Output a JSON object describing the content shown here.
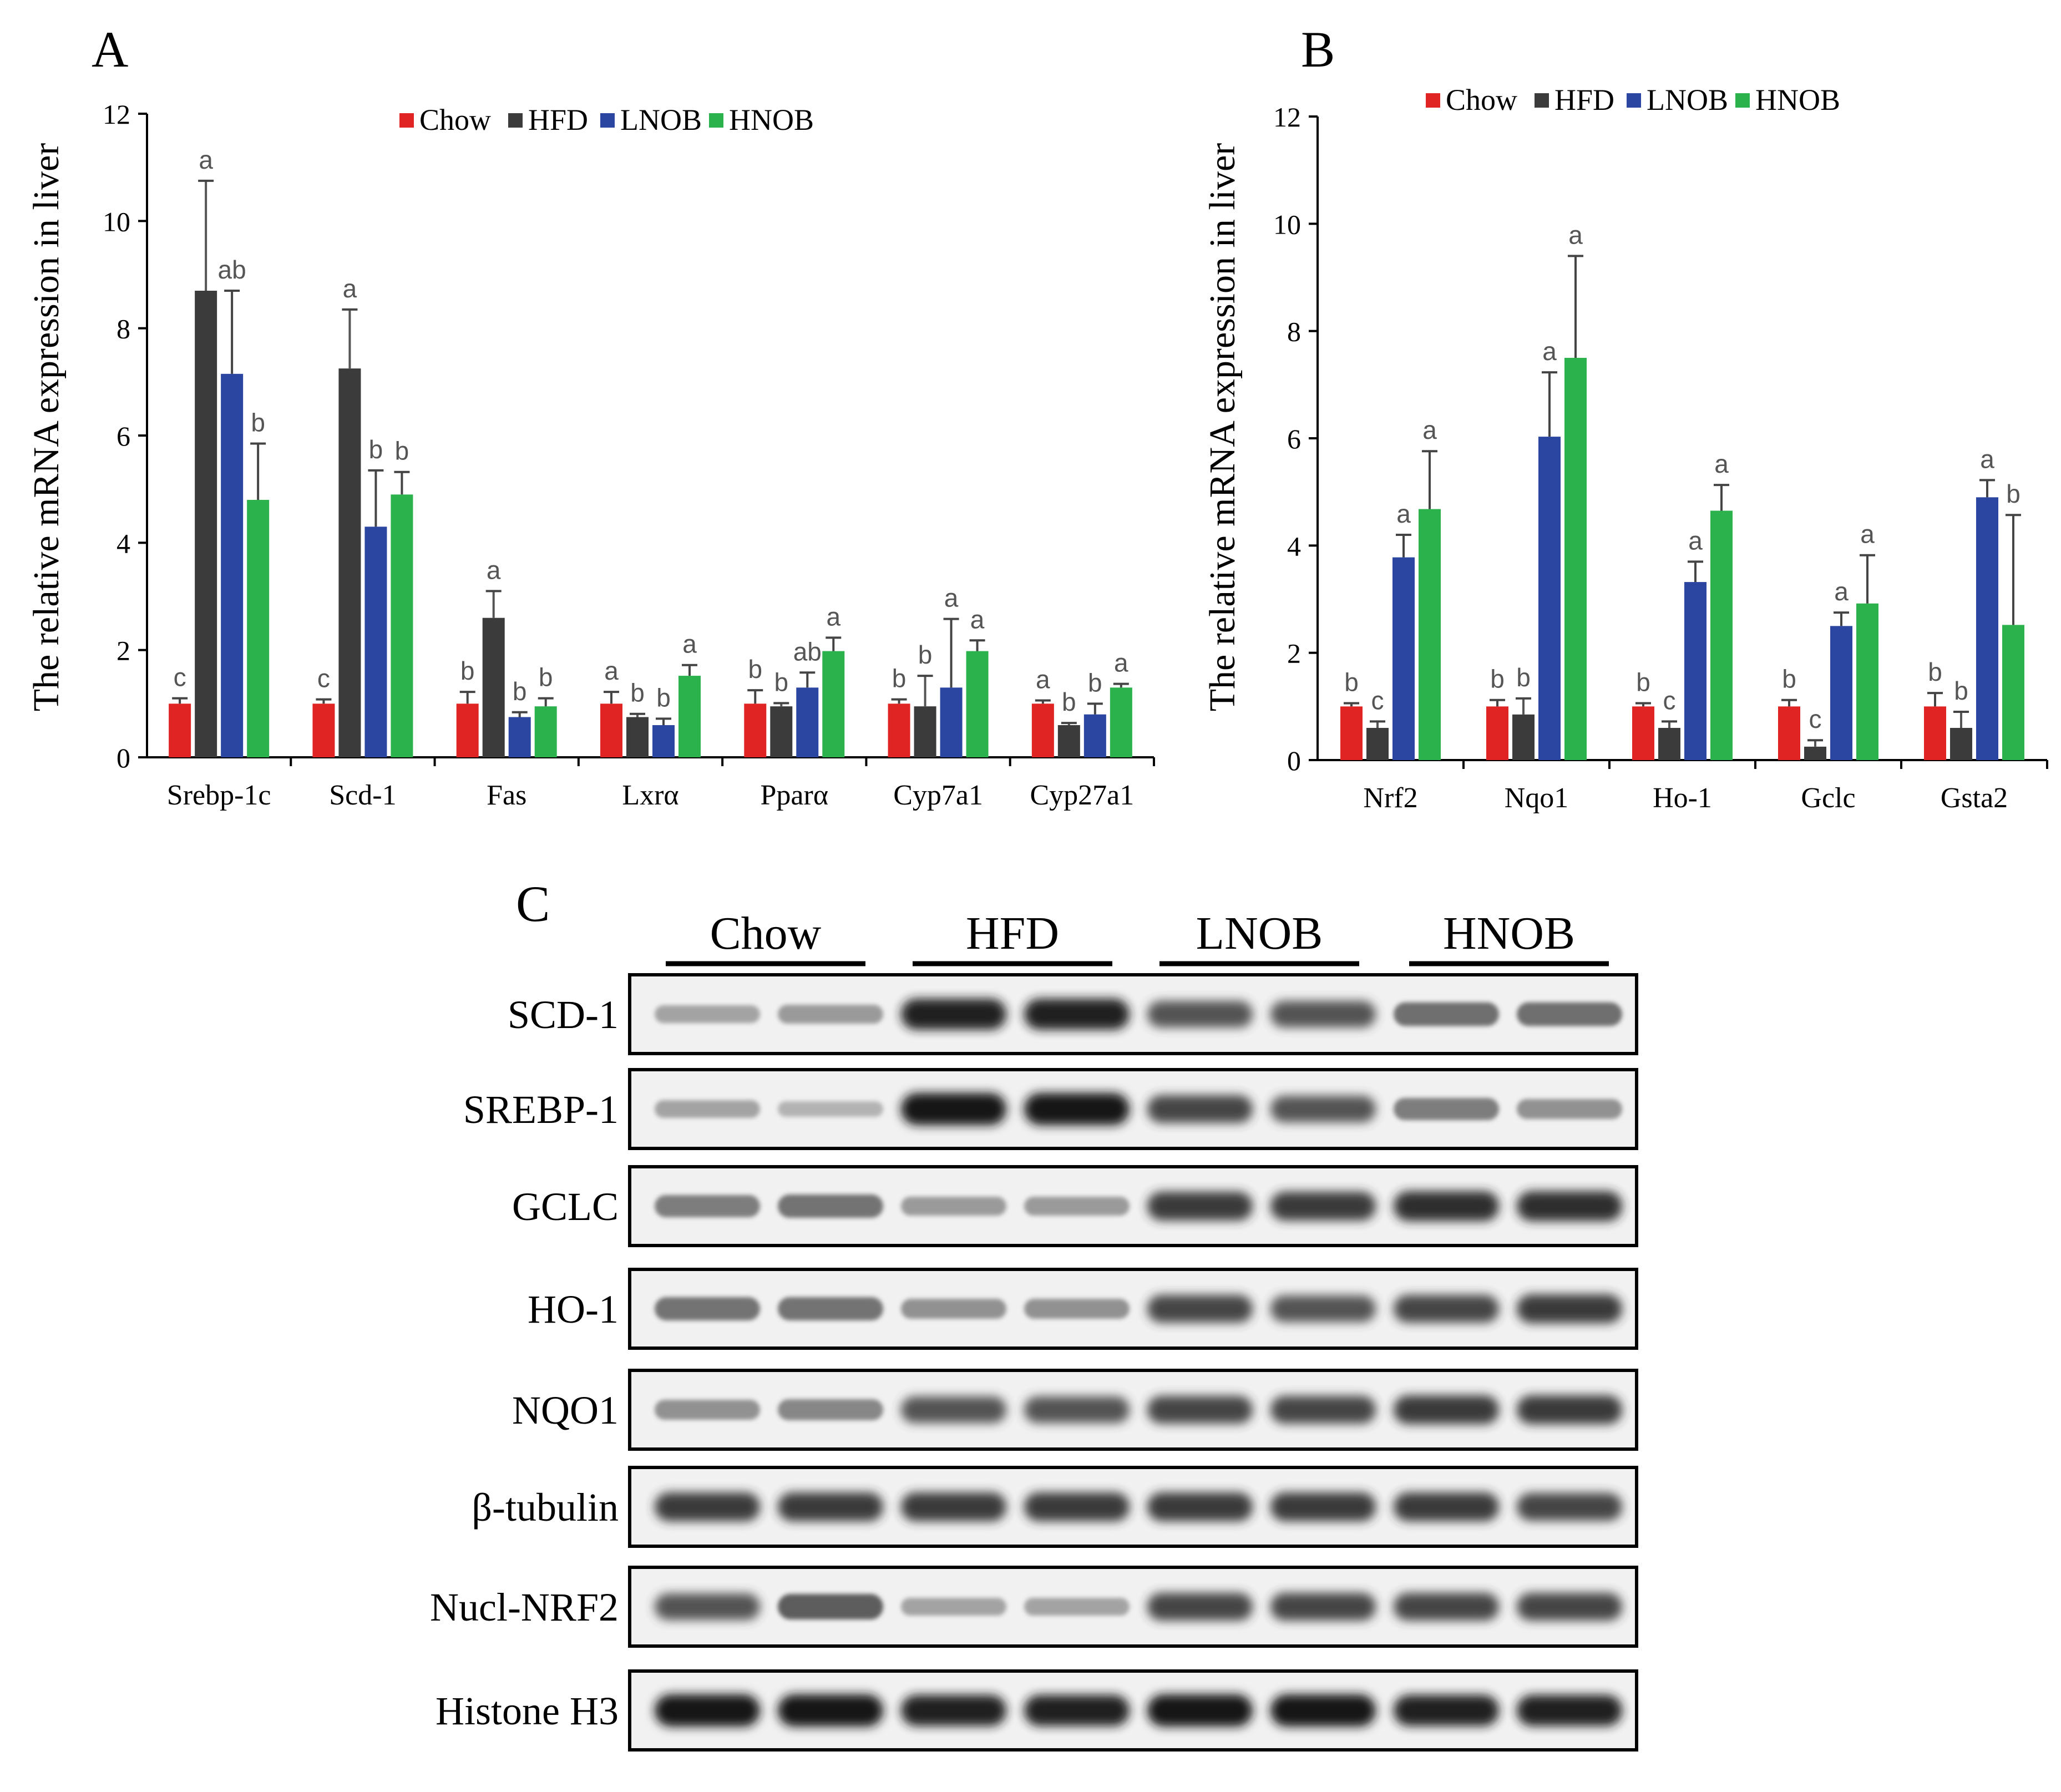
{
  "panel_a": {
    "letter": "A",
    "chart_data": {
      "type": "bar",
      "ylabel": "The relative mRNA expression in liver",
      "ylim": [
        0,
        12
      ],
      "yticks": [
        0,
        2,
        4,
        6,
        8,
        10,
        12
      ],
      "legend_position": "top-right",
      "categories": [
        "Srebp-1c",
        "Scd-1",
        "Fas",
        "Lxrα",
        "Pparα",
        "Cyp7a1",
        "Cyp27a1"
      ],
      "series": [
        {
          "name": "Chow",
          "color": "#e02424",
          "values": [
            1.0,
            1.0,
            1.0,
            1.0,
            1.0,
            1.0,
            1.0
          ],
          "errors": [
            0.1,
            0.08,
            0.22,
            0.22,
            0.25,
            0.08,
            0.06
          ],
          "labels": [
            "c",
            "c",
            "b",
            "a",
            "b",
            "b",
            "a"
          ]
        },
        {
          "name": "HFD",
          "color": "#3b3b3b",
          "values": [
            8.7,
            7.25,
            2.6,
            0.75,
            0.95,
            0.95,
            0.6
          ],
          "errors": [
            2.05,
            1.1,
            0.5,
            0.06,
            0.06,
            0.57,
            0.04
          ],
          "labels": [
            "a",
            "a",
            "a",
            "b",
            "b",
            "b",
            "b"
          ]
        },
        {
          "name": "LNOB",
          "color": "#2a46a0",
          "values": [
            7.15,
            4.3,
            0.75,
            0.6,
            1.3,
            1.3,
            0.8
          ],
          "errors": [
            1.55,
            1.05,
            0.09,
            0.12,
            0.28,
            1.28,
            0.2
          ],
          "labels": [
            "ab",
            "b",
            "b",
            "b",
            "ab",
            "a",
            "b"
          ]
        },
        {
          "name": "HNOB",
          "color": "#2bb24c",
          "values": [
            4.8,
            4.9,
            0.95,
            1.52,
            1.98,
            1.98,
            1.3
          ],
          "errors": [
            1.05,
            0.42,
            0.15,
            0.2,
            0.25,
            0.2,
            0.07
          ],
          "labels": [
            "b",
            "b",
            "b",
            "a",
            "a",
            "a",
            "a"
          ]
        }
      ]
    }
  },
  "panel_b": {
    "letter": "B",
    "chart_data": {
      "type": "bar",
      "ylabel": "The relative mRNA expression in liver",
      "ylim": [
        0,
        12
      ],
      "yticks": [
        0,
        2,
        4,
        6,
        8,
        10,
        12
      ],
      "legend_position": "top-center",
      "categories": [
        "Nrf2",
        "Nqo1",
        "Ho-1",
        "Gclc",
        "Gsta2"
      ],
      "series": [
        {
          "name": "Chow",
          "color": "#e02424",
          "values": [
            1.0,
            1.0,
            1.0,
            1.0,
            1.0
          ],
          "errors": [
            0.06,
            0.12,
            0.06,
            0.12,
            0.25
          ],
          "labels": [
            "b",
            "b",
            "b",
            "b",
            "b"
          ]
        },
        {
          "name": "HFD",
          "color": "#3b3b3b",
          "values": [
            0.6,
            0.85,
            0.6,
            0.25,
            0.6
          ],
          "errors": [
            0.12,
            0.3,
            0.12,
            0.12,
            0.3
          ],
          "labels": [
            "c",
            "b",
            "c",
            "c",
            "b"
          ]
        },
        {
          "name": "LNOB",
          "color": "#2a46a0",
          "values": [
            3.78,
            6.03,
            3.32,
            2.5,
            4.9
          ],
          "errors": [
            0.42,
            1.2,
            0.38,
            0.25,
            0.32
          ],
          "labels": [
            "a",
            "a",
            "a",
            "a",
            "a"
          ]
        },
        {
          "name": "HNOB",
          "color": "#2bb24c",
          "values": [
            4.68,
            7.5,
            4.65,
            2.92,
            2.52
          ],
          "errors": [
            1.08,
            1.9,
            0.48,
            0.9,
            2.05
          ],
          "labels": [
            "a",
            "a",
            "a",
            "a",
            "b"
          ]
        }
      ]
    }
  },
  "panel_c": {
    "letter": "C",
    "groups": [
      "Chow",
      "HFD",
      "LNOB",
      "HNOB"
    ],
    "rows": [
      {
        "label": "SCD-1",
        "intensities": [
          0.35,
          0.4,
          0.95,
          0.95,
          0.75,
          0.75,
          0.62,
          0.62
        ]
      },
      {
        "label": "SREBP-1",
        "intensities": [
          0.35,
          0.25,
          1.0,
          1.0,
          0.8,
          0.75,
          0.55,
          0.45
        ]
      },
      {
        "label": "GCLC",
        "intensities": [
          0.55,
          0.6,
          0.4,
          0.4,
          0.85,
          0.85,
          0.9,
          0.9
        ]
      },
      {
        "label": "HO-1",
        "intensities": [
          0.6,
          0.6,
          0.45,
          0.45,
          0.8,
          0.75,
          0.8,
          0.85
        ]
      },
      {
        "label": "NQO1",
        "intensities": [
          0.45,
          0.5,
          0.75,
          0.75,
          0.8,
          0.8,
          0.85,
          0.85
        ]
      },
      {
        "label": "β-tubulin",
        "intensities": [
          0.85,
          0.85,
          0.85,
          0.85,
          0.85,
          0.85,
          0.85,
          0.8
        ]
      },
      {
        "label": "Nucl-NRF2",
        "intensities": [
          0.75,
          0.7,
          0.35,
          0.35,
          0.8,
          0.8,
          0.8,
          0.8
        ]
      },
      {
        "label": "Histone H3",
        "intensities": [
          1.0,
          1.0,
          0.95,
          0.95,
          1.0,
          1.0,
          0.95,
          0.95
        ]
      }
    ]
  }
}
